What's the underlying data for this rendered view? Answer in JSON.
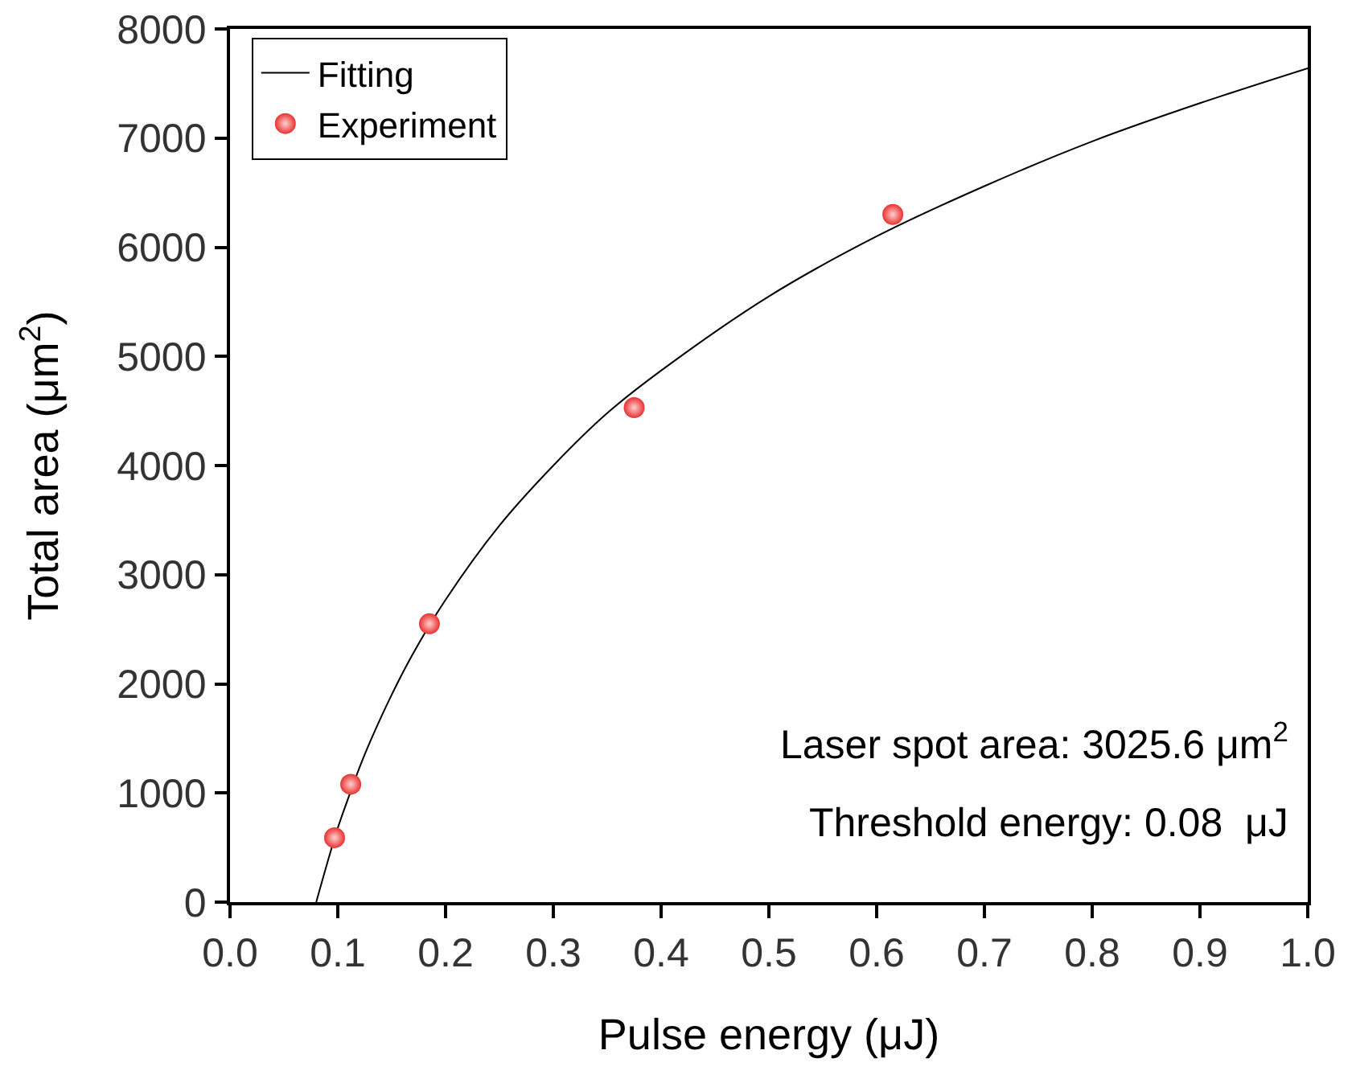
{
  "chart_data": {
    "type": "line",
    "xlabel": "Pulse energy (μJ)",
    "ylabel": "Total area (μm$^{2}$)",
    "xlim": [
      0,
      1
    ],
    "ylim": [
      0,
      8000
    ],
    "xticks": [
      {
        "value": 0,
        "label": "0.0"
      },
      0.1,
      0.2,
      0.3,
      0.4,
      0.5,
      0.6,
      0.7,
      0.8,
      0.9,
      {
        "value": 1,
        "label": "1.0"
      }
    ],
    "yticks": [
      0,
      1000,
      2000,
      3000,
      4000,
      5000,
      6000,
      7000,
      8000
    ],
    "grid": false,
    "legend": "top left",
    "series": [
      {
        "name": "Fitting",
        "color": "#000000",
        "marker": "none",
        "line_style": "solid",
        "x": [
          0.08,
          0.09,
          0.1,
          0.11,
          0.12,
          0.13,
          0.15,
          0.17,
          0.2,
          0.25,
          0.3,
          0.35,
          0.4,
          0.5,
          0.6,
          0.7,
          0.8,
          0.9,
          1.0
        ],
        "values": [
          0,
          350,
          680,
          960,
          1230,
          1470,
          1900,
          2280,
          2770,
          3450,
          4000,
          4480,
          4870,
          5550,
          6100,
          6560,
          6970,
          7320,
          7640
        ]
      },
      {
        "name": "Experiment",
        "type": "scatter",
        "color": "#e8312f",
        "marker": "circle",
        "x": [
          0.097,
          0.112,
          0.185,
          0.375,
          0.615
        ],
        "values": [
          590,
          1080,
          2550,
          4530,
          6300
        ]
      }
    ],
    "annotations": [
      "Laser spot area: 3025.6 μm$^{2}$",
      "Threshold energy: 0.08  μJ"
    ]
  }
}
